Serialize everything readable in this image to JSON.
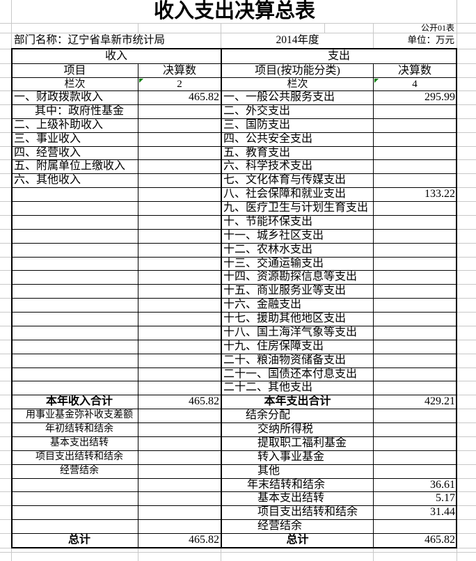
{
  "title": "收入支出决算总表",
  "meta": {
    "sheet_label": "公开01表",
    "department": "部门名称：辽宁省阜新市统计局",
    "year": "2014年度",
    "unit": "单位：万元"
  },
  "headers": {
    "income_section": "收入",
    "expense_section": "支出",
    "income_item": "项目",
    "income_amount": "决算数",
    "expense_item": "项目(按功能分类)",
    "expense_amount": "决算数",
    "income_index_label": "栏次",
    "income_index_no": "2",
    "expense_index_label": "栏次",
    "expense_index_no": "4"
  },
  "rows": [
    {
      "left_text": "一、财政拨款收入",
      "left_value": "465.82",
      "right_text": "一、一般公共服务支出",
      "right_value": "295.99"
    },
    {
      "left_text": "其中：政府性基金",
      "left_indent": 33,
      "right_text": "二、外交支出"
    },
    {
      "left_text": "二、上级补助收入",
      "right_text": "三、国防支出"
    },
    {
      "left_text": "三、事业收入",
      "right_text": "四、公共安全支出"
    },
    {
      "left_text": "四、经营收入",
      "right_text": "五、教育支出"
    },
    {
      "left_text": "五、附属单位上缴收入",
      "right_text": "六、科学技术支出"
    },
    {
      "left_text": "六、其他收入",
      "right_text": "七、文化体育与传媒支出"
    },
    {
      "right_text": "八、社会保障和就业支出",
      "right_value": "133.22"
    },
    {
      "right_text": "九、医疗卫生与计划生育支出"
    },
    {
      "right_text": "十、节能环保支出"
    },
    {
      "right_text": "十一、城乡社区支出"
    },
    {
      "right_text": "十二、农林水支出"
    },
    {
      "right_text": "十三、交通运输支出"
    },
    {
      "right_text": "十四、资源勘探信息等支出"
    },
    {
      "right_text": "十五、商业服务业等支出"
    },
    {
      "right_text": "十六、金融支出"
    },
    {
      "right_text": "十七、援助其他地区支出"
    },
    {
      "right_text": "十八、国土海洋气象等支出"
    },
    {
      "right_text": "十九、住房保障支出"
    },
    {
      "right_text": "二十、粮油物资储备支出"
    },
    {
      "right_text": "二十一、国债还本付息支出"
    },
    {
      "right_text": "二十二、其他支出"
    },
    {
      "left_text": "本年收入合计",
      "left_bold": true,
      "left_center": true,
      "left_value": "465.82",
      "right_text": "本年支出合计",
      "right_bold": true,
      "right_center": true,
      "right_value": "429.21"
    },
    {
      "left_text": "用事业基金弥补收支差额",
      "left_center": true,
      "left_small": true,
      "right_text": "结余分配",
      "right_indent": 35
    },
    {
      "left_text": "年初结转和结余",
      "left_center": true,
      "left_small": true,
      "right_text": "交纳所得税",
      "right_indent": 52
    },
    {
      "left_text": "基本支出结转",
      "left_center": true,
      "left_small": true,
      "right_text": "提取职工福利基金",
      "right_indent": 52
    },
    {
      "left_text": "项目支出结转和结余",
      "left_center": true,
      "left_small": true,
      "right_text": "转入事业基金",
      "right_indent": 52
    },
    {
      "left_text": "经营结余",
      "left_center": true,
      "left_small": true,
      "right_text": "其他",
      "right_indent": 52
    },
    {
      "right_text": "年末结转和结余",
      "right_indent": 37,
      "right_value": "36.61"
    },
    {
      "right_text": "基本支出结转",
      "right_indent": 52,
      "right_value": "5.17"
    },
    {
      "right_text": "项目支出结转和结余",
      "right_indent": 52,
      "right_value": "31.44"
    },
    {
      "right_text": "经营结余",
      "right_indent": 52
    },
    {
      "left_text": "总计",
      "left_bold": true,
      "left_center": true,
      "left_value": "465.82",
      "right_text": "总计",
      "right_bold": true,
      "right_center": true,
      "right_value": "465.82"
    }
  ],
  "colors": {
    "border": "#000000",
    "gridline": "#c8c8c8",
    "triangle": "#008000",
    "background": "#ffffff"
  }
}
